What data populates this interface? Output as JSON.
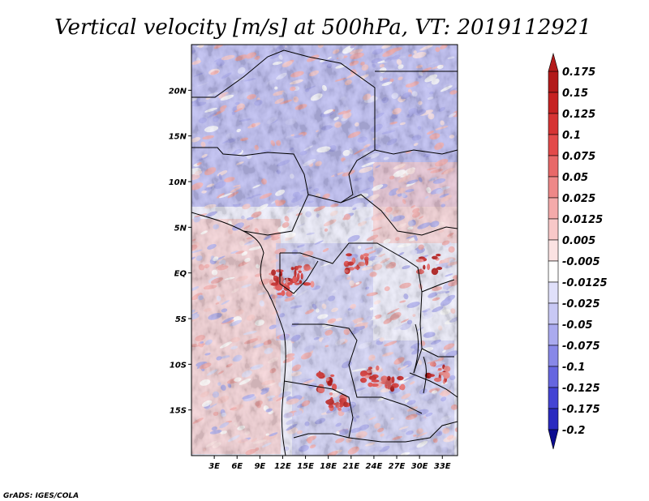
{
  "chart_data": {
    "type": "heatmap",
    "title": "Vertical velocity [m/s] at 500hPa, VT: 2019112921",
    "xlabel": "",
    "ylabel": "",
    "xlim": [
      0,
      35
    ],
    "ylim": [
      -20,
      25
    ],
    "x_ticks": [
      {
        "value": 3,
        "label": "3E"
      },
      {
        "value": 6,
        "label": "6E"
      },
      {
        "value": 9,
        "label": "9E"
      },
      {
        "value": 12,
        "label": "12E"
      },
      {
        "value": 15,
        "label": "15E"
      },
      {
        "value": 18,
        "label": "18E"
      },
      {
        "value": 21,
        "label": "21E"
      },
      {
        "value": 24,
        "label": "24E"
      },
      {
        "value": 27,
        "label": "27E"
      },
      {
        "value": 30,
        "label": "30E"
      },
      {
        "value": 33,
        "label": "33E"
      }
    ],
    "y_ticks": [
      {
        "value": 20,
        "label": "20N"
      },
      {
        "value": 15,
        "label": "15N"
      },
      {
        "value": 10,
        "label": "10N"
      },
      {
        "value": 5,
        "label": "5N"
      },
      {
        "value": 0,
        "label": "EQ"
      },
      {
        "value": -5,
        "label": "5S"
      },
      {
        "value": -10,
        "label": "10S"
      },
      {
        "value": -15,
        "label": "15S"
      }
    ],
    "colorbar": {
      "levels": [
        "0.175",
        "0.15",
        "0.125",
        "0.1",
        "0.075",
        "0.05",
        "0.025",
        "0.0125",
        "0.005",
        "-0.005",
        "-0.0125",
        "-0.025",
        "-0.05",
        "-0.075",
        "-0.1",
        "-0.125",
        "-0.175",
        "-0.2"
      ],
      "colors": [
        "#b31a1a",
        "#c62222",
        "#d63333",
        "#e34a4a",
        "#e86868",
        "#ee8888",
        "#f4aaaa",
        "#f8c8c8",
        "#fbe2e2",
        "#ffffff",
        "#e0e0fa",
        "#c8c8f4",
        "#aaaaef",
        "#8888e8",
        "#6666e0",
        "#4444d4",
        "#2a2ac0",
        "#1a1aa8",
        "#0c0c90"
      ],
      "extend": "both"
    },
    "notes": "Gridded field over Central/Southern Africa; predominantly weak values (-0.05 to 0.05) with localized maxima >0.1 near 11-14E/1S and 20-25E/10-14S."
  },
  "credit": "GrADS: IGES/COLA"
}
